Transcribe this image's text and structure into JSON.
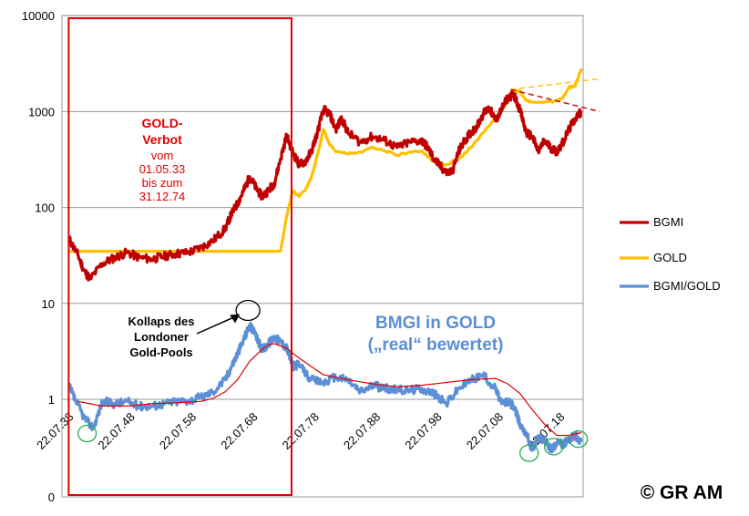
{
  "chart_data": {
    "type": "line",
    "y_scale": "log",
    "y_ticks": [
      "10000",
      "1000",
      "100",
      "10",
      "1",
      "0"
    ],
    "x_ticks": [
      "22.07.38",
      "22.07.48",
      "22.07.58",
      "22.07.68",
      "22.07.78",
      "22.07.88",
      "22.07.98",
      "22.07.08",
      "22.07.18"
    ],
    "x_range": [
      1938,
      2022
    ],
    "grid": true,
    "legend_position": "right",
    "series": [
      {
        "name": "BGMI",
        "color": "#c00000",
        "x": [
          1938.5,
          1940,
          1941,
          1942,
          1944,
          1946,
          1948,
          1950,
          1952,
          1954,
          1956,
          1958,
          1960,
          1962,
          1964,
          1965,
          1966,
          1967,
          1968,
          1969,
          1970,
          1971,
          1972,
          1973,
          1974,
          1975,
          1976,
          1977,
          1978,
          1979,
          1980,
          1981,
          1982,
          1983,
          1984,
          1986,
          1988,
          1990,
          1992,
          1994,
          1996,
          1997,
          1998,
          1999,
          2000,
          2001,
          2002,
          2003,
          2004,
          2005,
          2006,
          2007,
          2008,
          2009,
          2010,
          2011,
          2012,
          2013,
          2014,
          2015,
          2016,
          2017,
          2018,
          2019,
          2020,
          2021,
          2022
        ],
        "y": [
          48,
          32,
          22,
          18,
          26,
          30,
          34,
          30,
          29,
          31,
          33,
          34,
          38,
          45,
          60,
          85,
          110,
          150,
          210,
          160,
          130,
          150,
          180,
          320,
          560,
          380,
          280,
          300,
          380,
          600,
          1050,
          950,
          650,
          850,
          600,
          480,
          550,
          500,
          420,
          480,
          500,
          420,
          320,
          270,
          230,
          240,
          380,
          500,
          600,
          700,
          950,
          1100,
          800,
          1050,
          1400,
          1500,
          1050,
          600,
          550,
          380,
          500,
          420,
          380,
          480,
          650,
          850,
          1000
        ]
      },
      {
        "name": "GOLD",
        "color": "#ffc000",
        "x": [
          1938.5,
          1945,
          1950,
          1955,
          1960,
          1965,
          1968,
          1969,
          1970,
          1971,
          1972,
          1973,
          1974,
          1975,
          1976,
          1977,
          1978,
          1979,
          1980,
          1981,
          1982,
          1984,
          1986,
          1988,
          1990,
          1992,
          1994,
          1996,
          1998,
          2000,
          2002,
          2004,
          2006,
          2008,
          2010,
          2011,
          2012,
          2013,
          2014,
          2016,
          2018,
          2019,
          2020,
          2021,
          2022
        ],
        "y": [
          35,
          35,
          35,
          35,
          35,
          35,
          35,
          35,
          35,
          35,
          35,
          35,
          80,
          150,
          130,
          150,
          200,
          350,
          650,
          450,
          380,
          360,
          380,
          430,
          390,
          350,
          380,
          390,
          300,
          280,
          320,
          420,
          600,
          850,
          1250,
          1600,
          1650,
          1300,
          1250,
          1250,
          1300,
          1400,
          1800,
          1850,
          2800
        ]
      },
      {
        "name": "BGMI/GOLD",
        "color": "#5b8fd6",
        "x": [
          1938.5,
          1939.5,
          1941,
          1942.5,
          1944,
          1946,
          1948,
          1950,
          1952,
          1954,
          1956,
          1958,
          1960,
          1962,
          1964,
          1965,
          1966,
          1967,
          1968,
          1969,
          1970,
          1971,
          1972,
          1973,
          1974,
          1975,
          1976,
          1978,
          1980,
          1982,
          1984,
          1986,
          1988,
          1990,
          1992,
          1994,
          1996,
          1998,
          2000,
          2002,
          2004,
          2006,
          2008,
          2009,
          2010,
          2011,
          2012,
          2013,
          2014,
          2015,
          2016,
          2017,
          2018,
          2019,
          2020,
          2021,
          2022
        ],
        "y": [
          1.4,
          1.0,
          0.65,
          0.5,
          0.95,
          0.9,
          0.95,
          0.85,
          0.85,
          0.9,
          0.95,
          0.97,
          1.05,
          1.2,
          1.6,
          2.2,
          3.0,
          4.2,
          6.0,
          4.5,
          3.3,
          3.8,
          4.5,
          4.0,
          3.5,
          2.2,
          2.3,
          1.6,
          1.5,
          1.7,
          1.6,
          1.2,
          1.4,
          1.3,
          1.25,
          1.25,
          1.3,
          1.15,
          0.9,
          1.3,
          1.6,
          1.8,
          1.3,
          0.9,
          0.95,
          0.85,
          0.55,
          0.45,
          0.3,
          0.4,
          0.38,
          0.3,
          0.35,
          0.34,
          0.38,
          0.42,
          0.36
        ]
      },
      {
        "name": "",
        "color": "#e00000",
        "x": [
          1940,
          1944,
          1948,
          1952,
          1956,
          1960,
          1962,
          1964,
          1966,
          1968,
          1970,
          1971,
          1972,
          1974,
          1976,
          1978,
          1980,
          1984,
          1988,
          1992,
          1996,
          2000,
          2004,
          2008,
          2010,
          2012,
          2014,
          2016,
          2018,
          2020,
          2022
        ],
        "y": [
          0.95,
          0.85,
          0.85,
          0.9,
          0.92,
          0.95,
          1.02,
          1.2,
          1.6,
          2.5,
          3.3,
          3.7,
          3.8,
          3.4,
          2.7,
          2.2,
          1.8,
          1.6,
          1.45,
          1.35,
          1.4,
          1.5,
          1.6,
          1.65,
          1.45,
          1.15,
          0.78,
          0.55,
          0.42,
          0.42,
          0.45
        ]
      }
    ],
    "trend_lines": [
      {
        "color": "#ffc000",
        "from": {
          "x": 2010.5,
          "y": 1700
        },
        "to": {
          "x": 2025,
          "y": 2200
        }
      },
      {
        "color": "#c00000",
        "from": {
          "x": 2010.5,
          "y": 1700
        },
        "to": {
          "x": 2025,
          "y": 1000
        }
      }
    ],
    "annotations": {
      "verbot_title": "GOLD-",
      "verbot_title2": "Verbot",
      "verbot_line1": "vom",
      "verbot_line2": "01.05.33",
      "verbot_line3": "bis zum",
      "verbot_line4": "31.12.74",
      "kollaps_line1": "Kollaps des",
      "kollaps_line2": "Londoner",
      "kollaps_line3": "Gold-Pools",
      "bmgi_line1": "BMGI in GOLD",
      "bmgi_line2": "(„real“ bewertet)",
      "copyright": "© GR AM"
    },
    "verbot_box": {
      "x_from": 1938.5,
      "x_to": 1974.8
    },
    "kollaps_marker": {
      "x": 1968,
      "y": 6.5
    },
    "green_markers": [
      {
        "x": 1941.5,
        "y": 0.48
      },
      {
        "x": 2013.5,
        "y": 0.3
      },
      {
        "x": 2017.5,
        "y": 0.35
      },
      {
        "x": 2021.5,
        "y": 0.42
      }
    ]
  }
}
